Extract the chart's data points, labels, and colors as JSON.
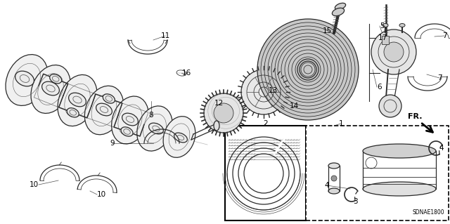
{
  "background_color": "#ffffff",
  "watermark": "SDNAE1800",
  "image_b64": ""
}
